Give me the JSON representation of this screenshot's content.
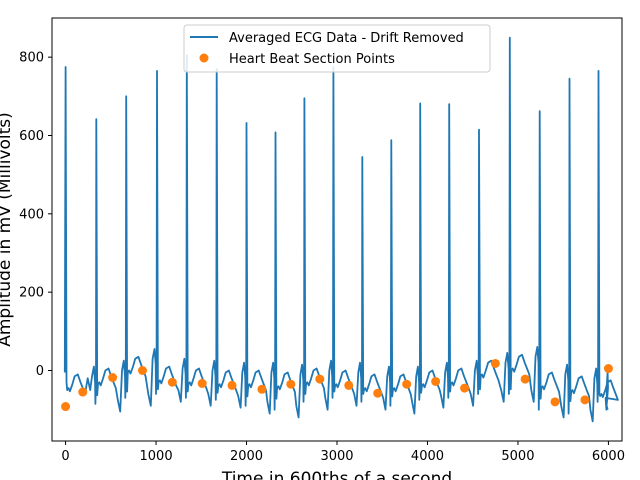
{
  "chart_data": {
    "type": "line",
    "xlabel": "Time in 600ths of a second",
    "ylabel": "Amplitude in mV (Millivolts)",
    "xlim": [
      -150,
      6150
    ],
    "ylim": [
      -180,
      900
    ],
    "xticks": [
      0,
      1000,
      2000,
      3000,
      4000,
      5000,
      6000
    ],
    "yticks": [
      0,
      200,
      400,
      600,
      800
    ],
    "grid": false,
    "legend_position": "upper-center",
    "series": [
      {
        "name": "Averaged ECG Data - Drift Removed",
        "kind": "line",
        "color": "#1f77b4",
        "peaks": [
          {
            "x": 0,
            "peak": 775,
            "trough": -50,
            "baseline": -5
          },
          {
            "x": 340,
            "peak": 642,
            "trough": -105,
            "baseline": 10
          },
          {
            "x": 670,
            "peak": 700,
            "trough": -90,
            "baseline": 40
          },
          {
            "x": 1010,
            "peak": 765,
            "trough": -80,
            "baseline": 15
          },
          {
            "x": 1340,
            "peak": 805,
            "trough": -90,
            "baseline": 10
          },
          {
            "x": 1670,
            "peak": 770,
            "trough": -95,
            "baseline": 5
          },
          {
            "x": 2000,
            "peak": 632,
            "trough": -110,
            "baseline": 5
          },
          {
            "x": 2320,
            "peak": 608,
            "trough": -120,
            "baseline": 0
          },
          {
            "x": 2640,
            "peak": 695,
            "trough": -100,
            "baseline": 10
          },
          {
            "x": 2960,
            "peak": 775,
            "trough": -90,
            "baseline": 5
          },
          {
            "x": 3280,
            "peak": 545,
            "trough": -100,
            "baseline": -5
          },
          {
            "x": 3600,
            "peak": 588,
            "trough": -110,
            "baseline": -5
          },
          {
            "x": 3920,
            "peak": 682,
            "trough": -95,
            "baseline": 5
          },
          {
            "x": 4240,
            "peak": 680,
            "trough": -90,
            "baseline": 10
          },
          {
            "x": 4570,
            "peak": 615,
            "trough": -80,
            "baseline": 30
          },
          {
            "x": 4910,
            "peak": 850,
            "trough": -80,
            "baseline": 45
          },
          {
            "x": 5240,
            "peak": 662,
            "trough": -120,
            "baseline": 0
          },
          {
            "x": 5570,
            "peak": 745,
            "trough": -130,
            "baseline": -10
          },
          {
            "x": 5890,
            "peak": 765,
            "trough": -100,
            "baseline": -20
          }
        ]
      },
      {
        "name": "Heart Beat Section Points",
        "kind": "scatter",
        "color": "#ff7f0e",
        "points": [
          {
            "x": 0,
            "y": -92
          },
          {
            "x": 190,
            "y": -55
          },
          {
            "x": 520,
            "y": -18
          },
          {
            "x": 850,
            "y": 0
          },
          {
            "x": 1180,
            "y": -30
          },
          {
            "x": 1510,
            "y": -33
          },
          {
            "x": 1840,
            "y": -38
          },
          {
            "x": 2170,
            "y": -48
          },
          {
            "x": 2490,
            "y": -35
          },
          {
            "x": 2810,
            "y": -22
          },
          {
            "x": 3130,
            "y": -38
          },
          {
            "x": 3450,
            "y": -58
          },
          {
            "x": 3770,
            "y": -35
          },
          {
            "x": 4090,
            "y": -28
          },
          {
            "x": 4410,
            "y": -45
          },
          {
            "x": 4750,
            "y": 18
          },
          {
            "x": 5080,
            "y": -22
          },
          {
            "x": 5410,
            "y": -80
          },
          {
            "x": 5740,
            "y": -75
          },
          {
            "x": 6000,
            "y": 5
          }
        ]
      }
    ]
  }
}
